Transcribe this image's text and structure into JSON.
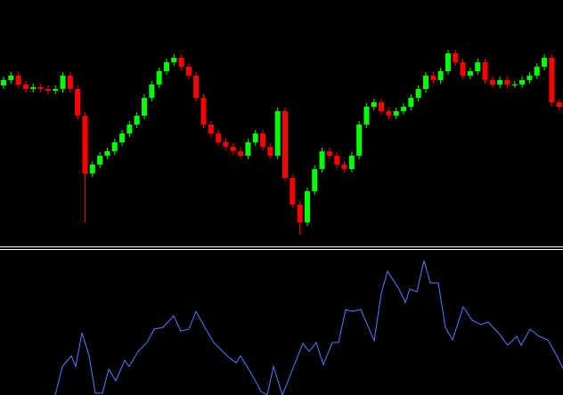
{
  "chart_data": [
    {
      "type": "candlestick",
      "up_color": "#00ff00",
      "down_color": "#ff0000",
      "ylim": [
        0,
        276
      ],
      "open": [
        180,
        186,
        191,
        181,
        176,
        178,
        176,
        174,
        176,
        191,
        176,
        146,
        81,
        91,
        101,
        106,
        116,
        126,
        136,
        146,
        166,
        181,
        196,
        206,
        211,
        201,
        191,
        166,
        136,
        126,
        116,
        111,
        106,
        101,
        116,
        126,
        111,
        101,
        151,
        76,
        46,
        26,
        61,
        86,
        106,
        101,
        91,
        86,
        101,
        136,
        156,
        161,
        151,
        146,
        151,
        156,
        166,
        176,
        191,
        186,
        196,
        216,
        206,
        191,
        196,
        206,
        186,
        181,
        186,
        181,
        181,
        186,
        191,
        201,
        211,
        161
      ],
      "high": [
        190,
        195,
        195,
        185,
        182,
        182,
        180,
        180,
        195,
        195,
        180,
        150,
        95,
        105,
        110,
        120,
        130,
        140,
        150,
        170,
        185,
        200,
        210,
        215,
        215,
        205,
        195,
        170,
        140,
        130,
        120,
        115,
        110,
        120,
        130,
        130,
        115,
        155,
        155,
        80,
        50,
        65,
        90,
        110,
        110,
        105,
        95,
        105,
        140,
        160,
        165,
        165,
        155,
        155,
        160,
        170,
        180,
        195,
        195,
        200,
        220,
        220,
        210,
        200,
        210,
        210,
        190,
        190,
        190,
        185,
        190,
        195,
        205,
        215,
        215,
        165
      ],
      "low": [
        176,
        182,
        177,
        172,
        172,
        172,
        170,
        170,
        172,
        172,
        142,
        26,
        77,
        87,
        97,
        102,
        112,
        122,
        132,
        142,
        162,
        177,
        192,
        202,
        197,
        187,
        162,
        132,
        122,
        112,
        107,
        102,
        97,
        97,
        112,
        107,
        97,
        97,
        72,
        42,
        12,
        22,
        57,
        82,
        97,
        87,
        82,
        82,
        97,
        132,
        152,
        147,
        142,
        142,
        147,
        152,
        162,
        172,
        182,
        182,
        192,
        202,
        187,
        187,
        192,
        182,
        177,
        177,
        177,
        177,
        177,
        182,
        187,
        197,
        157,
        152
      ],
      "close": [
        186,
        191,
        181,
        176,
        178,
        176,
        174,
        176,
        191,
        176,
        146,
        81,
        91,
        101,
        106,
        116,
        126,
        136,
        146,
        166,
        181,
        196,
        206,
        211,
        201,
        191,
        166,
        136,
        126,
        116,
        111,
        106,
        101,
        116,
        126,
        111,
        101,
        151,
        76,
        46,
        26,
        61,
        86,
        106,
        101,
        91,
        86,
        101,
        136,
        156,
        161,
        151,
        146,
        151,
        156,
        166,
        176,
        191,
        186,
        196,
        216,
        206,
        191,
        196,
        206,
        186,
        181,
        186,
        181,
        181,
        186,
        191,
        201,
        211,
        161,
        156
      ]
    },
    {
      "type": "line",
      "color": "#4f7fff",
      "xlim": [
        0,
        632
      ],
      "ylim": [
        0,
        162
      ],
      "x": [
        62,
        70,
        80,
        85,
        92,
        100,
        107,
        115,
        122,
        130,
        140,
        145,
        155,
        165,
        173,
        183,
        195,
        203,
        212,
        220,
        230,
        240,
        255,
        265,
        270,
        285,
        293,
        300,
        307,
        317,
        340,
        347,
        355,
        363,
        373,
        380,
        388,
        395,
        405,
        420,
        428,
        435,
        448,
        455,
        460,
        468,
        476,
        483,
        492,
        500,
        508,
        520,
        530,
        540,
        548,
        560,
        570,
        580,
        585,
        595,
        605,
        615,
        625,
        632
      ],
      "values": [
        0,
        32,
        44,
        32,
        70,
        44,
        2,
        2,
        29,
        16,
        39,
        32,
        49,
        59,
        74,
        76,
        89,
        72,
        74,
        94,
        76,
        59,
        44,
        36,
        44,
        19,
        4,
        0,
        32,
        0,
        58,
        49,
        59,
        34,
        59,
        59,
        96,
        94,
        96,
        61,
        114,
        139,
        119,
        104,
        119,
        116,
        151,
        126,
        126,
        76,
        62,
        99,
        84,
        79,
        82,
        69,
        56,
        66,
        56,
        74,
        66,
        62,
        44,
        30
      ]
    }
  ]
}
